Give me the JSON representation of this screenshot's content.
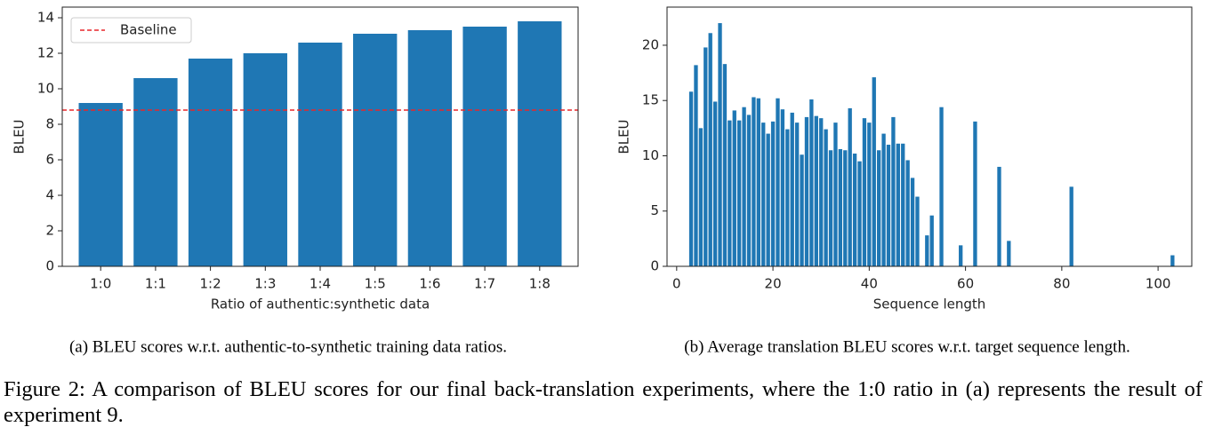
{
  "chart_data": [
    {
      "type": "bar",
      "caption": "(a) BLEU scores w.r.t. authentic-to-synthetic training data ratios.",
      "xlabel": "Ratio of authentic:synthetic data",
      "ylabel": "BLEU",
      "categories": [
        "1:0",
        "1:1",
        "1:2",
        "1:3",
        "1:4",
        "1:5",
        "1:6",
        "1:7",
        "1:8"
      ],
      "values": [
        9.2,
        10.6,
        11.7,
        12.0,
        12.6,
        13.1,
        13.3,
        13.5,
        13.8
      ],
      "color": "#1f77b4",
      "baseline": {
        "name": "Baseline",
        "value": 8.8,
        "color": "#e8272a"
      },
      "legend": "upper left",
      "ylim": [
        0,
        14.6
      ],
      "yticks": [
        0,
        2,
        4,
        6,
        8,
        10,
        12,
        14
      ]
    },
    {
      "type": "bar",
      "caption": "(b) Average translation BLEU scores w.r.t. target sequence length.",
      "xlabel": "Sequence length",
      "ylabel": "BLEU",
      "x": [
        3,
        4,
        5,
        6,
        7,
        8,
        9,
        10,
        11,
        12,
        13,
        14,
        15,
        16,
        17,
        18,
        19,
        20,
        21,
        22,
        23,
        24,
        25,
        26,
        27,
        28,
        29,
        30,
        31,
        32,
        33,
        34,
        35,
        36,
        37,
        38,
        39,
        40,
        41,
        42,
        43,
        44,
        45,
        46,
        47,
        48,
        49,
        50,
        52,
        53,
        55,
        59,
        62,
        67,
        69,
        82,
        103
      ],
      "values": [
        15.8,
        18.2,
        12.5,
        19.8,
        21.1,
        14.9,
        22.0,
        18.3,
        13.2,
        14.1,
        13.2,
        14.4,
        13.7,
        15.3,
        15.2,
        13.0,
        12.0,
        13.1,
        15.2,
        14.2,
        12.4,
        13.9,
        13.0,
        10.1,
        13.5,
        15.1,
        13.6,
        13.4,
        12.4,
        10.5,
        13.0,
        10.6,
        10.5,
        14.3,
        10.2,
        9.5,
        13.4,
        13.0,
        17.1,
        10.5,
        12.0,
        11.0,
        13.5,
        11.1,
        11.1,
        9.6,
        8.0,
        6.3,
        2.8,
        4.6,
        14.4,
        1.9,
        13.1,
        9.0,
        2.3,
        7.2,
        1.0
      ],
      "color": "#1f77b4",
      "xlim": [
        -2,
        107
      ],
      "xticks": [
        0,
        20,
        40,
        60,
        80,
        100
      ],
      "ylim": [
        0,
        23.45
      ],
      "yticks": [
        0,
        5,
        10,
        15,
        20
      ]
    }
  ],
  "figure_caption": "Figure 2: A comparison of BLEU scores for our final back-translation experiments, where the 1:0 ratio in (a) represents the result of experiment 9."
}
